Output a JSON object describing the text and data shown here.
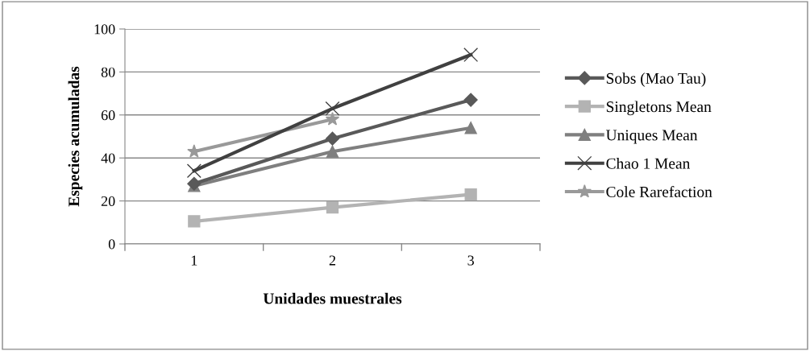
{
  "chart_data": {
    "type": "line",
    "xlabel": "Unidades muestrales",
    "ylabel": "Especies acumuladas",
    "categories": [
      "1",
      "2",
      "3"
    ],
    "series": [
      {
        "name": "Sobs (Mao Tau)",
        "color": "#595959",
        "marker": "diamond",
        "values": [
          28,
          49,
          67
        ]
      },
      {
        "name": "Singletons Mean",
        "color": "#b3b3b3",
        "marker": "square",
        "values": [
          10.5,
          17,
          23
        ]
      },
      {
        "name": "Uniques Mean",
        "color": "#7f7f7f",
        "marker": "triangle",
        "values": [
          27,
          43,
          54
        ]
      },
      {
        "name": "Chao 1 Mean",
        "color": "#404040",
        "marker": "cross",
        "values": [
          34,
          63,
          88
        ]
      },
      {
        "name": "Cole Rarefaction",
        "color": "#999999",
        "marker": "star",
        "values": [
          43,
          58,
          null
        ]
      }
    ],
    "ylim": [
      0,
      100
    ],
    "yticks": [
      0,
      20,
      40,
      60,
      80,
      100
    ],
    "grid": "y",
    "legend": "right",
    "line_style": "solid"
  }
}
